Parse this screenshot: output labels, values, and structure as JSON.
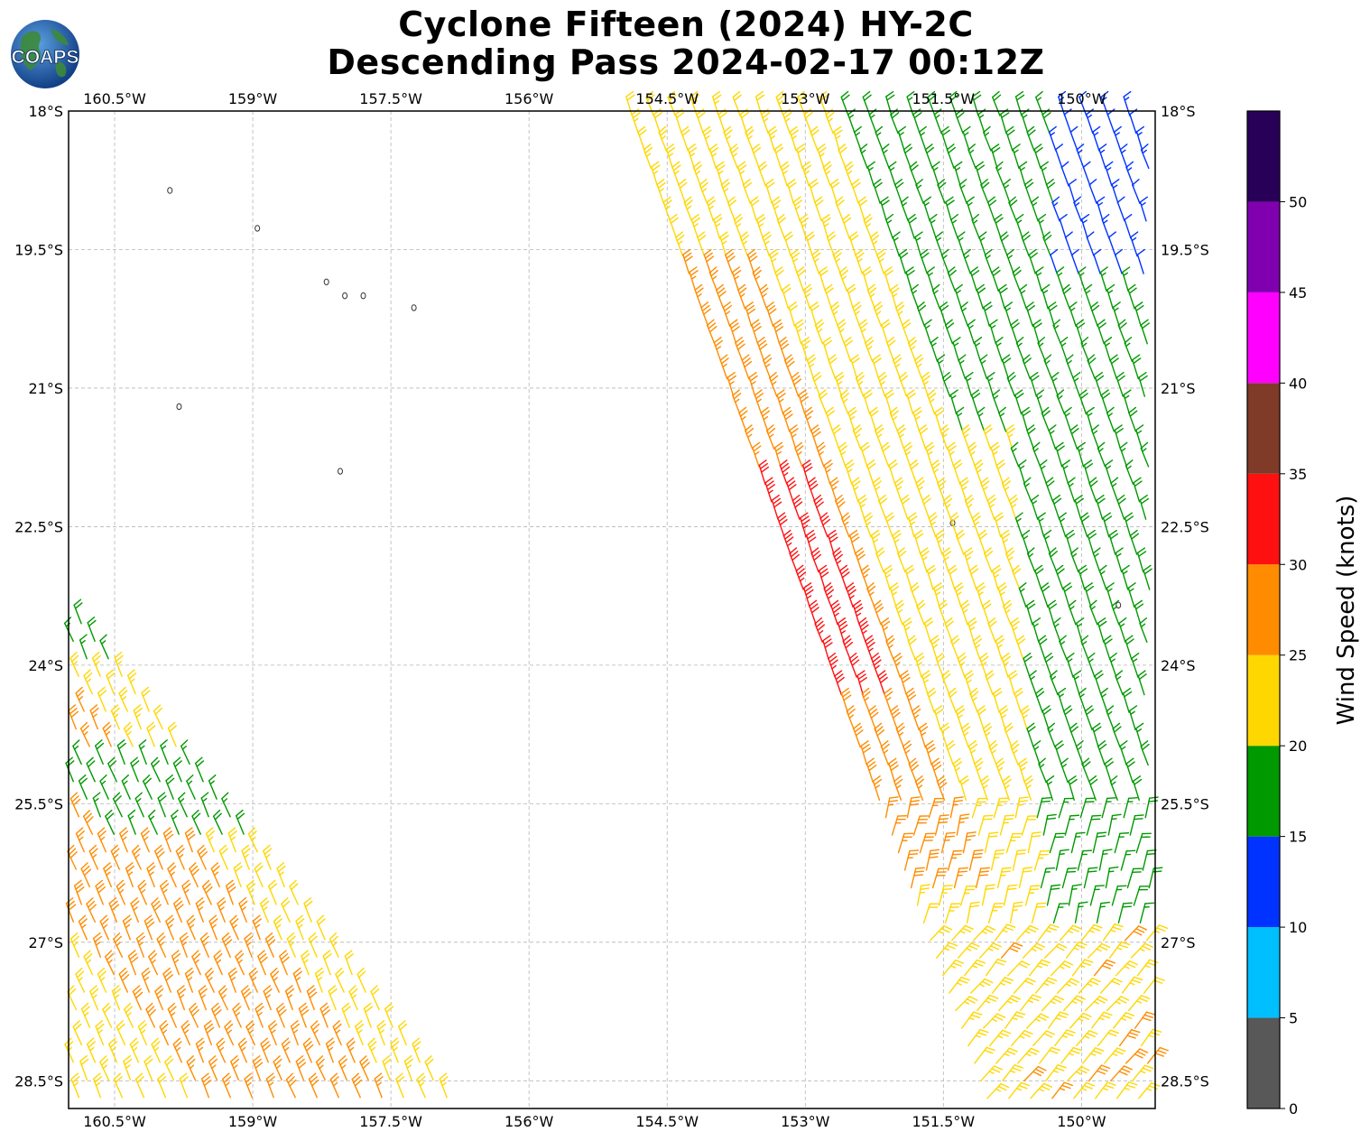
{
  "title": {
    "line1": "Cyclone Fifteen (2024) HY-2C",
    "line2": "Descending Pass 2024-02-17 00:12Z"
  },
  "logo": {
    "text": "COAPS",
    "icon": "globe-logo-icon",
    "ocean_color": "#1f5fa8",
    "land_color": "#3d8a3a"
  },
  "map": {
    "lon_range": [
      -161.0,
      -149.2
    ],
    "lat_range": [
      -18.0,
      -28.8
    ],
    "lon_ticks": [
      {
        "value": -160.5,
        "label": "160.5°W"
      },
      {
        "value": -159.0,
        "label": "159°W"
      },
      {
        "value": -157.5,
        "label": "157.5°W"
      },
      {
        "value": -156.0,
        "label": "156°W"
      },
      {
        "value": -154.5,
        "label": "154.5°W"
      },
      {
        "value": -153.0,
        "label": "153°W"
      },
      {
        "value": -151.5,
        "label": "151.5°W"
      },
      {
        "value": -150.0,
        "label": "150°W"
      }
    ],
    "lat_ticks": [
      {
        "value": -18.0,
        "label": "18°S"
      },
      {
        "value": -19.5,
        "label": "19.5°S"
      },
      {
        "value": -21.0,
        "label": "21°S"
      },
      {
        "value": -22.5,
        "label": "22.5°S"
      },
      {
        "value": -24.0,
        "label": "24°S"
      },
      {
        "value": -25.5,
        "label": "25.5°S"
      },
      {
        "value": -27.0,
        "label": "27°S"
      },
      {
        "value": -28.5,
        "label": "28.5°S"
      }
    ],
    "gridlines": true,
    "islands": [
      {
        "lon": -159.9,
        "lat": -18.86
      },
      {
        "lon": -158.95,
        "lat": -19.27
      },
      {
        "lon": -157.8,
        "lat": -20.0
      },
      {
        "lon": -157.25,
        "lat": -20.13
      },
      {
        "lon": -158.2,
        "lat": -19.85
      },
      {
        "lon": -158.0,
        "lat": -20.0
      },
      {
        "lon": -159.8,
        "lat": -21.2
      },
      {
        "lon": -158.05,
        "lat": -21.9
      },
      {
        "lon": -151.4,
        "lat": -22.46
      },
      {
        "lon": -149.6,
        "lat": -23.35
      }
    ]
  },
  "colorbar": {
    "label": "Wind Speed (knots)",
    "bounds": [
      0,
      5,
      10,
      15,
      20,
      25,
      30,
      35,
      40,
      45,
      50,
      55
    ],
    "tick_labels": [
      "0",
      "5",
      "10",
      "15",
      "20",
      "25",
      "30",
      "35",
      "40",
      "45",
      "50"
    ],
    "colors": [
      "#585858",
      "#00bfff",
      "#0033ff",
      "#009900",
      "#ffd700",
      "#ff8c00",
      "#ff1010",
      "#7f3a28",
      "#ff00ff",
      "#8000b0",
      "#280058"
    ]
  }
}
